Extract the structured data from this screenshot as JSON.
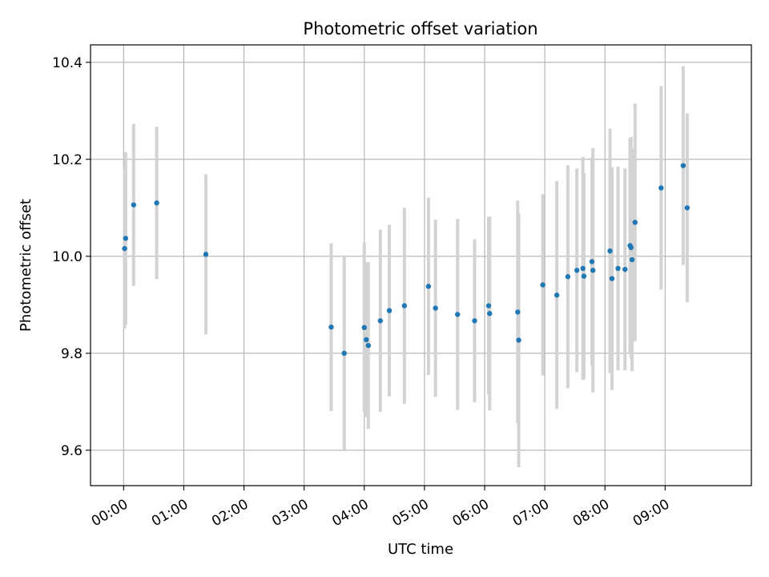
{
  "chart_data": {
    "type": "scatter",
    "title": "Photometric offset variation",
    "xlabel": "UTC time",
    "ylabel": "Photometric offset",
    "xlim": [
      "23:27",
      "10:26"
    ],
    "ylim": [
      9.527,
      10.436
    ],
    "x_ticks": [
      "00:00",
      "01:00",
      "02:00",
      "03:00",
      "04:00",
      "05:00",
      "06:00",
      "07:00",
      "08:00",
      "09:00"
    ],
    "y_ticks": [
      "9.6",
      "9.8",
      "10.0",
      "10.2",
      "10.4"
    ],
    "grid": true,
    "point_color": "#1f77b4",
    "errorbar_color": "#d3d3d3",
    "series": [
      {
        "points": [
          {
            "x": "00:01",
            "y": 10.016,
            "yerr": 0.165
          },
          {
            "x": "00:02",
            "y": 10.037,
            "yerr": 0.178
          },
          {
            "x": "00:10",
            "y": 10.106,
            "yerr": 0.167
          },
          {
            "x": "00:33",
            "y": 10.11,
            "yerr": 0.157
          },
          {
            "x": "01:22",
            "y": 10.004,
            "yerr": 0.165
          },
          {
            "x": "03:27",
            "y": 9.854,
            "yerr": 0.173
          },
          {
            "x": "03:40",
            "y": 9.8,
            "yerr": 0.202
          },
          {
            "x": "04:00",
            "y": 9.853,
            "yerr": 0.175
          },
          {
            "x": "04:02",
            "y": 9.828,
            "yerr": 0.16
          },
          {
            "x": "04:04",
            "y": 9.816,
            "yerr": 0.172
          },
          {
            "x": "04:16",
            "y": 9.867,
            "yerr": 0.188
          },
          {
            "x": "04:25",
            "y": 9.888,
            "yerr": 0.177
          },
          {
            "x": "04:40",
            "y": 9.898,
            "yerr": 0.202
          },
          {
            "x": "05:04",
            "y": 9.938,
            "yerr": 0.183
          },
          {
            "x": "05:11",
            "y": 9.893,
            "yerr": 0.183
          },
          {
            "x": "05:33",
            "y": 9.88,
            "yerr": 0.197
          },
          {
            "x": "05:50",
            "y": 9.867,
            "yerr": 0.168
          },
          {
            "x": "06:04",
            "y": 9.898,
            "yerr": 0.183
          },
          {
            "x": "06:05",
            "y": 9.882,
            "yerr": 0.2
          },
          {
            "x": "06:33",
            "y": 9.885,
            "yerr": 0.23
          },
          {
            "x": "06:34",
            "y": 9.827,
            "yerr": 0.262
          },
          {
            "x": "06:58",
            "y": 9.941,
            "yerr": 0.187
          },
          {
            "x": "07:12",
            "y": 9.92,
            "yerr": 0.235
          },
          {
            "x": "07:23",
            "y": 9.958,
            "yerr": 0.23
          },
          {
            "x": "07:32",
            "y": 9.971,
            "yerr": 0.21
          },
          {
            "x": "07:38",
            "y": 9.975,
            "yerr": 0.23
          },
          {
            "x": "07:39",
            "y": 9.959,
            "yerr": 0.213
          },
          {
            "x": "07:47",
            "y": 9.989,
            "yerr": 0.215
          },
          {
            "x": "07:48",
            "y": 9.971,
            "yerr": 0.252
          },
          {
            "x": "08:05",
            "y": 10.011,
            "yerr": 0.252
          },
          {
            "x": "08:07",
            "y": 9.954,
            "yerr": 0.23
          },
          {
            "x": "08:13",
            "y": 9.975,
            "yerr": 0.21
          },
          {
            "x": "08:20",
            "y": 9.973,
            "yerr": 0.208
          },
          {
            "x": "08:25",
            "y": 10.022,
            "yerr": 0.222
          },
          {
            "x": "08:26",
            "y": 10.018,
            "yerr": 0.228
          },
          {
            "x": "08:27",
            "y": 9.993,
            "yerr": 0.23
          },
          {
            "x": "08:30",
            "y": 10.07,
            "yerr": 0.245
          },
          {
            "x": "08:56",
            "y": 10.141,
            "yerr": 0.21
          },
          {
            "x": "09:18",
            "y": 10.187,
            "yerr": 0.205
          },
          {
            "x": "09:22",
            "y": 10.1,
            "yerr": 0.195
          }
        ]
      }
    ]
  }
}
